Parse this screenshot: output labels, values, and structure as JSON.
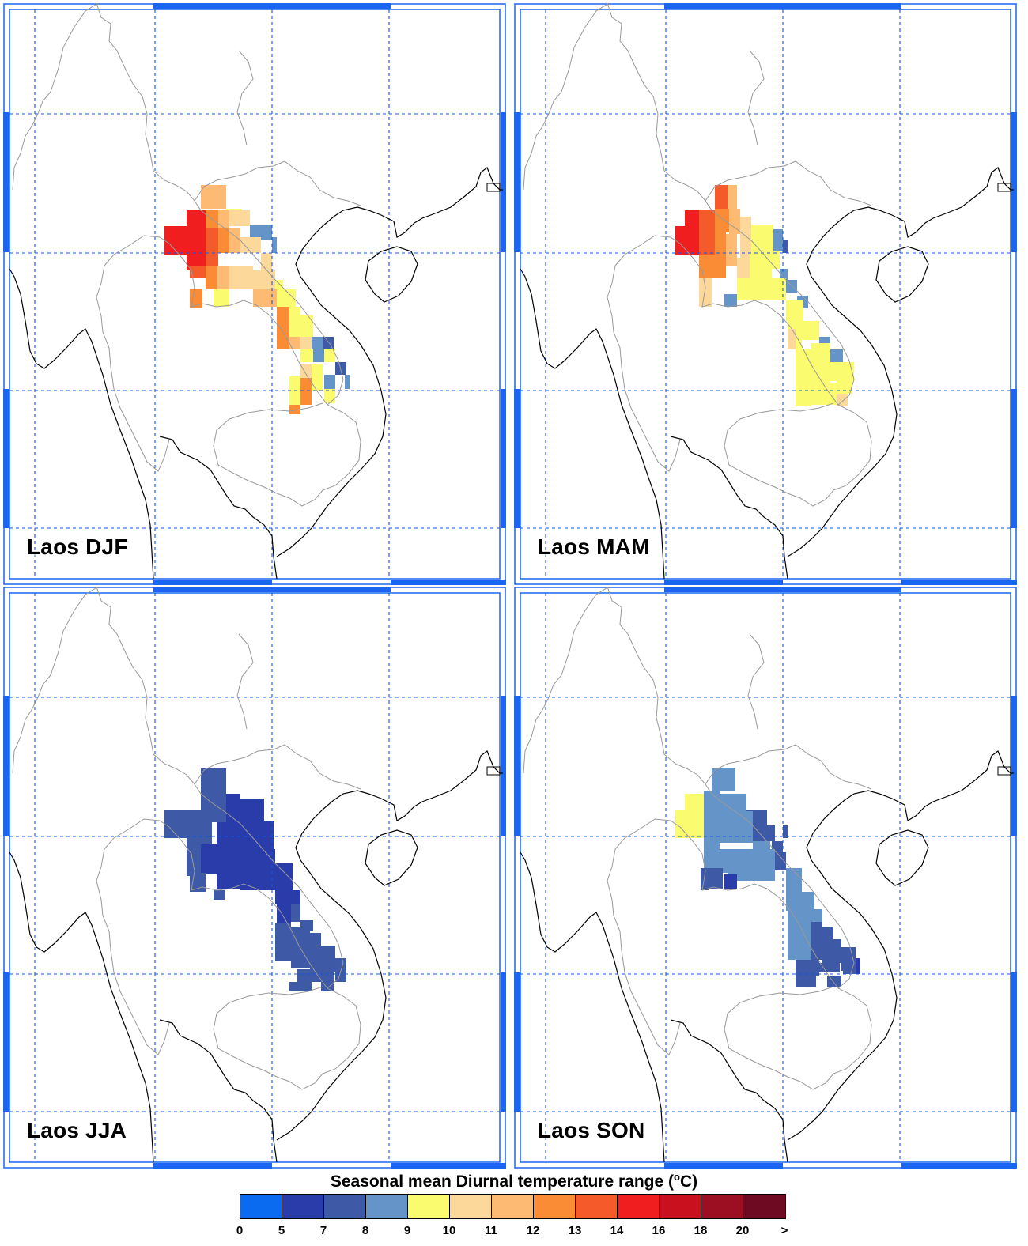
{
  "panels": [
    {
      "id": "djf",
      "label": "Laos DJF"
    },
    {
      "id": "mam",
      "label": "Laos MAM"
    },
    {
      "id": "jja",
      "label": "Laos JJA"
    },
    {
      "id": "son",
      "label": "Laos SON"
    }
  ],
  "colorbar": {
    "title_prefix": "Seasonal mean Diurnal temperature range (",
    "title_degree": "o",
    "title_suffix": "C)",
    "tick_labels": [
      "0",
      "5",
      "7",
      "8",
      "9",
      "10",
      "11",
      "12",
      "13",
      "14",
      "16",
      "18",
      "20",
      ">"
    ],
    "colors": [
      "#0a6af0",
      "#2a3caa",
      "#3e5aa6",
      "#6595c8",
      "#fbfb70",
      "#fcd99a",
      "#fcba72",
      "#f98c35",
      "#f55a2a",
      "#f01e1e",
      "#c8101e",
      "#9c0f22",
      "#6e0a22"
    ]
  },
  "colors": {
    "grid": "#1656e0",
    "frame": "#1a66f0",
    "coast": "#000000",
    "border": "#999999"
  }
}
